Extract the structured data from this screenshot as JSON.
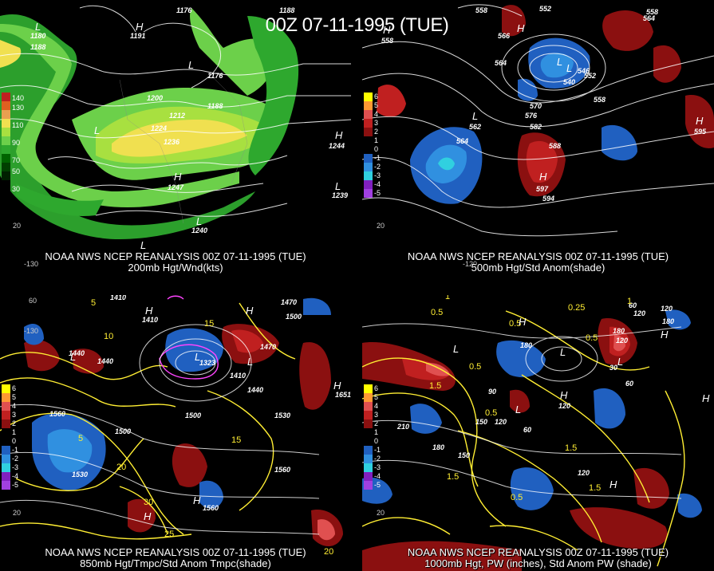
{
  "main_title": "00Z 07-11-1995 (TUE)",
  "colors": {
    "wind_scale": [
      "#006400",
      "#2ea82e",
      "#6cd04a",
      "#a8e040",
      "#f0e050",
      "#e8a050",
      "#e06020",
      "#c02020"
    ],
    "anom_scale": [
      "#ffff00",
      "#ff9933",
      "#e05050",
      "#c02020",
      "#8b1010",
      "#000000",
      "#2060c0",
      "#3090e0",
      "#30d0e0",
      "#8020c0",
      "#a040e0"
    ],
    "contour": "#ffffff",
    "yellow_contour": "#ffee33",
    "magenta_contour": "#ff44ff"
  },
  "panels": [
    {
      "id": "p1",
      "caption_line1": "NOAA NWS NCEP REANALYSIS 00Z 07-11-1995 (TUE)",
      "caption_line2": "200mb Hgt/Wnd(kts)",
      "colorbar_labels": [
        "140",
        "130",
        "110",
        "90",
        "70",
        "50",
        "30"
      ],
      "contour_labels": [
        "1176",
        "1188",
        "1191",
        "1176",
        "1200",
        "1212",
        "1224",
        "1236",
        "1188",
        "1188",
        "1247",
        "1244",
        "1240",
        "1239",
        "1180"
      ],
      "centers": [
        "L",
        "L",
        "H",
        "L",
        "H",
        "L",
        "L",
        "H",
        "L"
      ],
      "lon_labels": [
        "-130",
        "20"
      ]
    },
    {
      "id": "p2",
      "caption_line1": "NOAA NWS NCEP REANALYSIS 00Z 07-11-1995 (TUE)",
      "caption_line2": "500mb Hgt/Std Anom(shade)",
      "colorbar_labels": [
        "6",
        "5",
        "4",
        "3",
        "2",
        "1",
        "0",
        "-1",
        "-2",
        "-3",
        "-4",
        "-5"
      ],
      "contour_labels": [
        "558",
        "552",
        "558",
        "564",
        "564",
        "546",
        "552",
        "540",
        "558",
        "570",
        "576",
        "582",
        "564",
        "588",
        "594",
        "597",
        "595",
        "562",
        "566",
        "558"
      ],
      "centers": [
        "H",
        "L",
        "L",
        "H",
        "H",
        "L",
        "H"
      ],
      "lon_labels": [
        "-120",
        "20"
      ]
    },
    {
      "id": "p3",
      "caption_line1": "NOAA NWS NCEP REANALYSIS 00Z 07-11-1995 (TUE)",
      "caption_line2": "850mb Hgt/Tmpc/Std Anom Tmpc(shade)",
      "colorbar_labels": [
        "6",
        "5",
        "4",
        "3",
        "2",
        "1",
        "0",
        "-1",
        "-2",
        "-3",
        "-4",
        "-5"
      ],
      "contour_labels": [
        "1410",
        "1440",
        "1440",
        "1470",
        "1470",
        "1500",
        "1410",
        "1500",
        "1440",
        "1500",
        "1530",
        "1560",
        "1530",
        "1560",
        "1560",
        "1410",
        "1323",
        "1651"
      ],
      "temp_labels": [
        "5",
        "10",
        "15",
        "20",
        "25",
        "30",
        "5",
        "15",
        "20"
      ],
      "centers": [
        "H",
        "H",
        "L",
        "L",
        "H",
        "H",
        "L",
        "H"
      ],
      "lon_labels": [
        "60",
        "20",
        "-130"
      ]
    },
    {
      "id": "p4",
      "caption_line1": "NOAA NWS NCEP REANALYSIS 00Z 07-11-1995 (TUE)",
      "caption_line2": "1000mb Hgt, PW (inches), Std Anom PW (shade)",
      "colorbar_labels": [
        "6",
        "5",
        "4",
        "3",
        "2",
        "1",
        "0",
        "-1",
        "-2",
        "-3",
        "-4",
        "-5"
      ],
      "contour_labels": [
        "60",
        "120",
        "180",
        "180",
        "120",
        "180",
        "210",
        "90",
        "150",
        "120",
        "60",
        "120",
        "180",
        "150",
        "120",
        "60",
        "30",
        "120"
      ],
      "pw_labels": [
        "1",
        "0.25",
        "0.5",
        "0.5",
        "0.5",
        "1.5",
        "0.5",
        "1.5",
        "1.5",
        "0.5",
        "0.5",
        "1.5",
        "1"
      ],
      "centers": [
        "H",
        "H",
        "L",
        "L",
        "L",
        "H",
        "H",
        "L",
        "H"
      ],
      "lon_labels": [
        "20"
      ]
    }
  ]
}
